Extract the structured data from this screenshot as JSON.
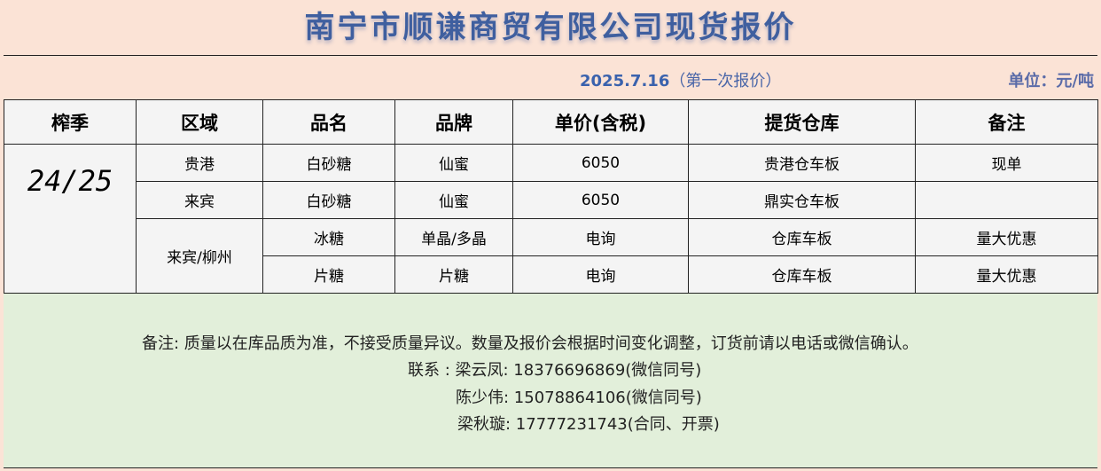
{
  "title": "南宁市顺谦商贸有限公司现货报价",
  "date": "2025.7.16",
  "quote_round": "（第一次报价）",
  "unit": "单位：元/吨",
  "headers": [
    "榨季",
    "区域",
    "品名",
    "品牌",
    "单价(含税)",
    "提货仓库",
    "备注"
  ],
  "season": "24/25",
  "rows": [
    {
      "region": "贵港",
      "product": "白砂糖",
      "brand": "仙蜜",
      "price": "6050",
      "warehouse": "贵港仓车板",
      "remark": "现单"
    },
    {
      "region": "来宾",
      "product": "白砂糖",
      "brand": "仙蜜",
      "price": "6050",
      "warehouse": "鼎实仓车板",
      "remark": ""
    },
    {
      "region": "来宾/柳州",
      "product": "冰糖",
      "brand": "单晶/多晶",
      "price": "电询",
      "warehouse": "仓库车板",
      "remark": "量大优惠"
    },
    {
      "product": "片糖",
      "brand": "片糖",
      "price": "电询",
      "warehouse": "仓库车板",
      "remark": "量大优惠"
    }
  ],
  "notes": {
    "remark": "备注: 质量以在库品质为准，不接受质量异议。数量及报价会根据时间变化调整，订货前请以电话或微信确认。",
    "contact1": "联系 : 梁云凤: 18376696869(微信同号)",
    "contact2": "陈少伟: 15078864106(微信同号)",
    "contact3": "梁秋璇: 17777231743(合同、开票)"
  }
}
